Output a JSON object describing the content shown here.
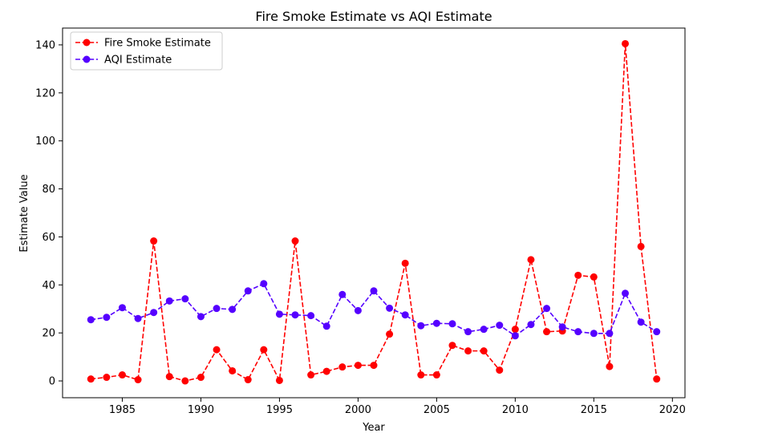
{
  "chart_data": {
    "type": "line",
    "title": "Fire Smoke Estimate vs AQI Estimate",
    "xlabel": "Year",
    "ylabel": "Estimate Value",
    "xlim": [
      1981.2,
      2020.8
    ],
    "ylim": [
      -7,
      147
    ],
    "xticks": [
      1985,
      1990,
      1995,
      2000,
      2005,
      2010,
      2015,
      2020
    ],
    "yticks": [
      0,
      20,
      40,
      60,
      80,
      100,
      120,
      140
    ],
    "grid": false,
    "legend_position": "top-left",
    "x": [
      1983,
      1984,
      1985,
      1986,
      1987,
      1988,
      1989,
      1990,
      1991,
      1992,
      1993,
      1994,
      1995,
      1996,
      1997,
      1998,
      1999,
      2000,
      2001,
      2002,
      2003,
      2004,
      2005,
      2006,
      2007,
      2008,
      2009,
      2010,
      2011,
      2012,
      2013,
      2014,
      2015,
      2016,
      2017,
      2018,
      2019
    ],
    "series": [
      {
        "name": "Fire Smoke Estimate",
        "color": "#ff0000",
        "values": [
          0.8,
          1.5,
          2.5,
          0.5,
          58.3,
          1.8,
          0,
          1.5,
          13,
          4.2,
          0.5,
          13,
          0.2,
          58.3,
          2.5,
          4,
          5.8,
          6.5,
          6.5,
          19.5,
          49,
          2.5,
          2.5,
          14.8,
          12.5,
          12.5,
          4.5,
          21.5,
          50.5,
          20.5,
          20.8,
          44,
          43.3,
          6,
          140.5,
          56,
          0.8
        ]
      },
      {
        "name": "AQI Estimate",
        "color": "#5500ff",
        "values": [
          25.5,
          26.5,
          30.5,
          26,
          28.5,
          33.3,
          34.2,
          26.8,
          30.2,
          29.8,
          37.5,
          40.5,
          27.8,
          27.5,
          27.2,
          22.8,
          36,
          29.3,
          37.5,
          30.3,
          27.5,
          23,
          24,
          23.8,
          20.5,
          21.5,
          23.2,
          18.8,
          23.5,
          30.2,
          22.5,
          20.5,
          19.8,
          19.8,
          36.5,
          24.5,
          20.5
        ]
      }
    ]
  }
}
